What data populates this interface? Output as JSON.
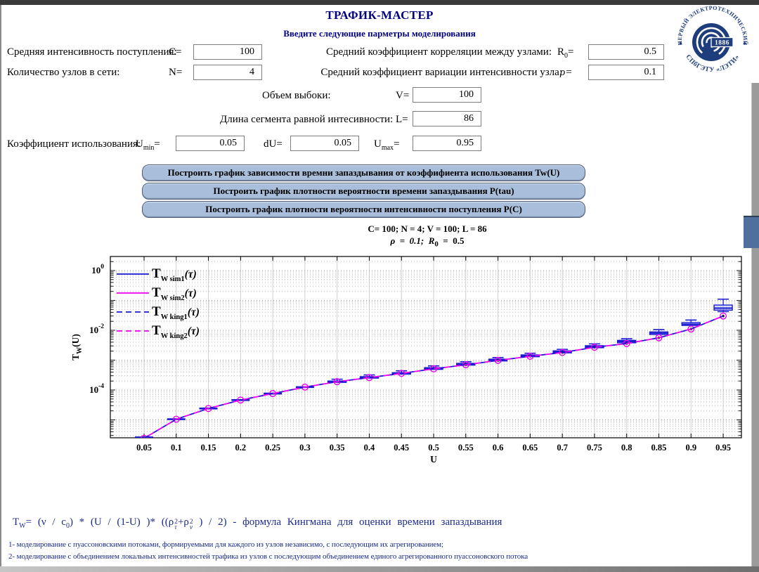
{
  "colors": {
    "accent_navy": "#000080",
    "button_bg": "#a9bedb",
    "series_blue": "#1a1ad2",
    "series_magenta": "#ee00ee",
    "formula_blue": "#1b2a8c"
  },
  "header": {
    "title": "ТРАФИК-МАСТЕР",
    "subtitle": "Введите следующие парметры моделирования"
  },
  "logo": {
    "arc_top": "ПЕРВЫЙ ЭЛЕКТРОТЕХНИЧЕСКИЙ",
    "arc_bottom": "СПбГЭТУ «ЛЭТИ»",
    "year": "1886"
  },
  "form": {
    "arrival_label": "Средняя интенсивность поступления:",
    "arrival_var": "C=",
    "arrival_value": "100",
    "nodes_label": "Количество узлов в сети:",
    "nodes_var": "N=",
    "nodes_value": "4",
    "corr_label": "Средний коэффициент корреляции между узлами:",
    "corr_var_base": "R",
    "corr_var_sub": "0",
    "corr_var_eq": "=",
    "corr_value": "0.5",
    "variation_label": "Средний коэффициент вариации интенсивности узла:",
    "variation_var": "ρ=",
    "variation_value": "0.1",
    "sample_label": "Объем выбоки:",
    "sample_var": "V=",
    "sample_value": "100",
    "segment_label": "Длина сегмента равной интесивности:",
    "segment_var": "L=",
    "segment_value": "86",
    "usage_label": "Коэффициент использования:",
    "umin_base": "U",
    "umin_sub": "min",
    "umin_eq": "=",
    "umin_value": "0.05",
    "du_var": "dU=",
    "du_value": "0.05",
    "umax_base": "U",
    "umax_sub": "max",
    "umax_eq": "=",
    "umax_value": "0.95"
  },
  "buttons": {
    "plot_tw": "Построить график зависимости времни запаздывания от коэффифиента использования Tw(U)",
    "plot_ptau": "Построить график плотности вероятности времени запаздывания P(tau)",
    "plot_pc": "Построить график плотности вероятности интенсивности поступления P(C)"
  },
  "chart_data": {
    "type": "line",
    "title_line1": "C= 100; N = 4; V = 100; L = 86",
    "title_line2_pre": "ρ  =  0.1;  R",
    "title_line2_sub": "0",
    "title_line2_post": "  =  0.5",
    "xlabel": "U",
    "ylabel_main": "T",
    "ylabel_sub": "W",
    "ylabel_tail": "(U)",
    "x_ticks": [
      0.05,
      0.1,
      0.15,
      0.2,
      0.25,
      0.3,
      0.35,
      0.4,
      0.45,
      0.5,
      0.55,
      0.6,
      0.65,
      0.7,
      0.75,
      0.8,
      0.85,
      0.9,
      0.95
    ],
    "y_tick_exponents": [
      0,
      -2,
      -4
    ],
    "ylim_log10": [
      -5.6,
      0.47
    ],
    "grid": "log-dotted",
    "legend_position": "top-left-inside",
    "x": [
      0.05,
      0.1,
      0.15,
      0.2,
      0.25,
      0.3,
      0.35,
      0.4,
      0.45,
      0.5,
      0.55,
      0.6,
      0.65,
      0.7,
      0.75,
      0.8,
      0.85,
      0.9,
      0.95
    ],
    "series": [
      {
        "name": "Tw_sim1",
        "legend": {
          "main": "T",
          "sub": "W",
          "sub2": " sim1",
          "tail": "(τ)"
        },
        "kind": "boxplot",
        "line": "solid",
        "color": "#1a1ad2",
        "median": [
          2.6e-06,
          1.05e-05,
          2.4e-05,
          4.6e-05,
          7.6e-05,
          0.000125,
          0.00019,
          0.00026,
          0.00036,
          0.00052,
          0.00072,
          0.001,
          0.0014,
          0.0019,
          0.0028,
          0.0042,
          0.008,
          0.016,
          0.055
        ],
        "q1": [
          2.6e-06,
          1.05e-05,
          2.4e-05,
          4.6e-05,
          7.6e-05,
          0.000125,
          0.00018,
          0.00025,
          0.00034,
          0.00049,
          0.00068,
          0.00094,
          0.0013,
          0.00175,
          0.0026,
          0.0038,
          0.0072,
          0.0145,
          0.047
        ],
        "q3": [
          2.6e-06,
          1.05e-05,
          2.4e-05,
          4.6e-05,
          7.6e-05,
          0.000125,
          0.0002,
          0.00028,
          0.00038,
          0.00056,
          0.00078,
          0.00108,
          0.0015,
          0.00205,
          0.00305,
          0.0046,
          0.0088,
          0.018,
          0.07
        ],
        "whisker_hi": [
          2.6e-06,
          1.05e-05,
          2.4e-05,
          4.6e-05,
          7.6e-05,
          0.000125,
          0.00023,
          0.00032,
          0.00044,
          0.00064,
          0.00088,
          0.00122,
          0.0017,
          0.0023,
          0.0035,
          0.0052,
          0.0105,
          0.022,
          0.11
        ],
        "whisker_lo": [
          2.6e-06,
          1.05e-05,
          2.4e-05,
          4.6e-05,
          7.6e-05,
          0.000125,
          0.00018,
          0.00025,
          0.00034,
          0.00049,
          0.00068,
          0.00094,
          0.0013,
          0.00175,
          0.0026,
          0.0036,
          0.0068,
          0.0135,
          0.042
        ]
      },
      {
        "name": "Tw_sim2",
        "legend": {
          "main": "T",
          "sub": "W",
          "sub2": " sim2",
          "tail": "(τ)"
        },
        "kind": "markers",
        "line": "solid",
        "color": "#ee00ee",
        "dot_from": 10,
        "values": [
          2.4e-06,
          1.05e-05,
          2.4e-05,
          4.6e-05,
          7.6e-05,
          0.000125,
          0.00019,
          0.00026,
          0.00036,
          0.00051,
          0.0007,
          0.00098,
          0.00135,
          0.0018,
          0.0027,
          0.0036,
          0.0056,
          0.011,
          0.03
        ]
      },
      {
        "name": "Tw_king1",
        "legend": {
          "main": "T",
          "sub": "W",
          "sub2": " king1",
          "tail": "(τ)"
        },
        "kind": "line",
        "line": "dashed",
        "color": "#1a1ad2",
        "values": [
          2.4e-06,
          1.05e-05,
          2.4e-05,
          4.6e-05,
          7.6e-05,
          0.000125,
          0.00019,
          0.00026,
          0.00036,
          0.00051,
          0.0007,
          0.00098,
          0.00135,
          0.0018,
          0.0027,
          0.0036,
          0.0056,
          0.011,
          0.03
        ]
      },
      {
        "name": "Tw_king2",
        "legend": {
          "main": "T",
          "sub": "W",
          "sub2": " king2",
          "tail": "(τ)"
        },
        "kind": "line",
        "line": "dashed",
        "dash_offset": 7.2,
        "color": "#ee00ee",
        "values": [
          2.4e-06,
          1.05e-05,
          2.4e-05,
          4.6e-05,
          7.6e-05,
          0.000125,
          0.00019,
          0.00026,
          0.00036,
          0.00051,
          0.0007,
          0.00098,
          0.00135,
          0.0018,
          0.0027,
          0.0036,
          0.0056,
          0.011,
          0.03
        ]
      }
    ]
  },
  "formula": {
    "t": "T",
    "w": "W",
    "p1": "= (ν / c",
    "c0": "0",
    "p2": ") * (U / (1-U) )* ((ρ",
    "sup1": "2",
    "sub1": "τ",
    "p3": "+ρ",
    "sup2": "2",
    "sub2": "ν",
    "p4": " ) / 2) - формула Кингмана для оценки времени запаздывания"
  },
  "footnotes": {
    "line1": "1- моделирование с пуассоновскими потоками, формируемыми для каждого из узлов независимо, с последующим их агрегированием;",
    "line2": "2- моделирование с объединением локальных интенсивностей трафика из узлов с последующим объединением единого агрегированного пуассоновского потока"
  }
}
